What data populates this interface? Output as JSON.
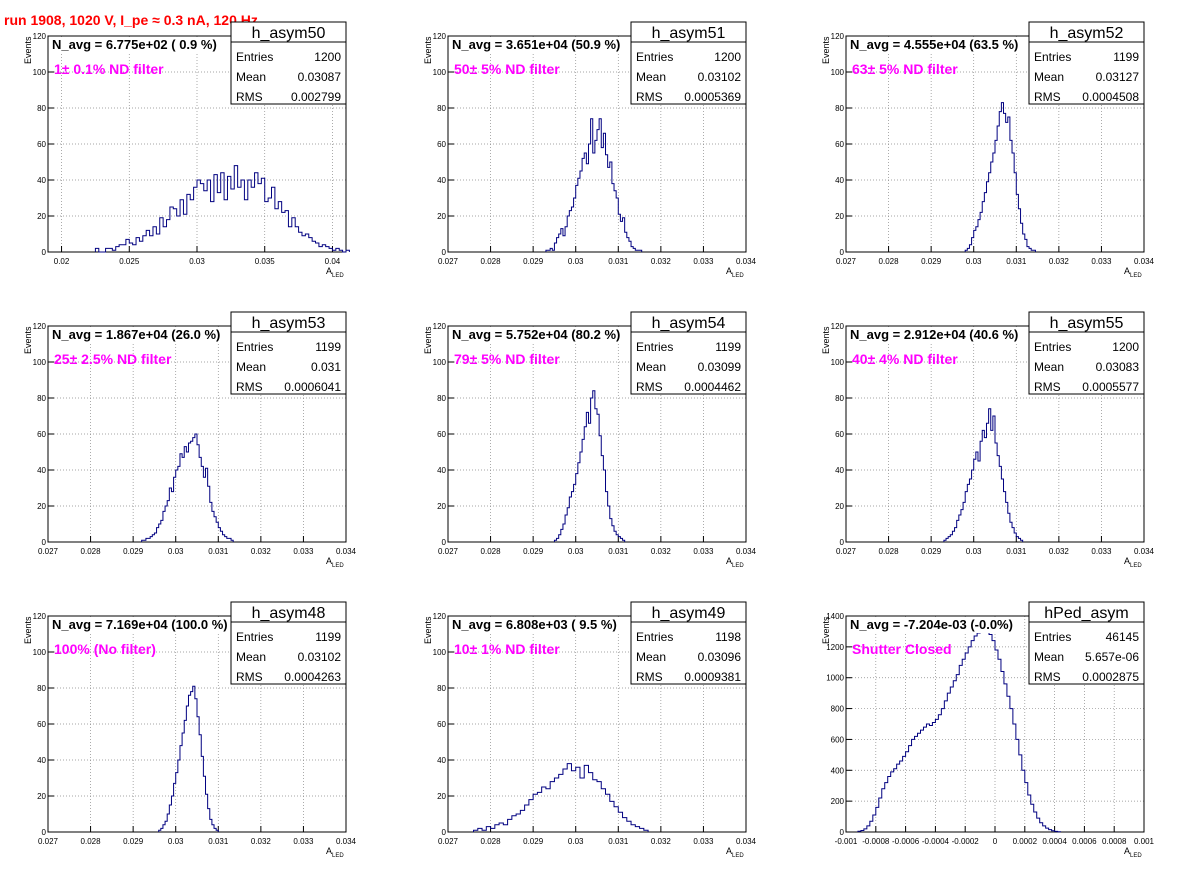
{
  "title": "run 1908,  1020 V, I_pe ≈ 0.3 nA, 120 Hz",
  "stats_labels": {
    "entries": "Entries",
    "mean": "Mean",
    "rms": "RMS"
  },
  "axis_labels": {
    "y": "Events",
    "x_main": "A",
    "x_sub": "LED"
  },
  "colors": {
    "line": "#000080",
    "annotation": "#ff00ff",
    "title": "#ff0000",
    "grid": "#888888"
  },
  "chart_data": [
    {
      "type": "histogram",
      "name": "h_asym50",
      "n_avg": "N_avg = 6.775e+02 ( 0.9 %)",
      "note": "1± 0.1% ND filter",
      "entries": "1200",
      "mean": "0.03087",
      "rms": "0.002799",
      "xlim": [
        0.019,
        0.041
      ],
      "ylim": [
        0,
        120
      ],
      "xticks": [
        "0.02",
        "0.025",
        "0.03",
        "0.035",
        "0.04"
      ],
      "yticks": [
        "0",
        "20",
        "40",
        "60",
        "80",
        "100",
        "120"
      ],
      "grid": true,
      "bins": {
        "x0": 0.0225,
        "width": 0.00025,
        "values": [
          2,
          0,
          0,
          2,
          2,
          1,
          3,
          4,
          4,
          7,
          5,
          4,
          8,
          6,
          9,
          12,
          9,
          14,
          10,
          19,
          14,
          18,
          25,
          24,
          20,
          29,
          21,
          32,
          29,
          36,
          40,
          38,
          34,
          40,
          28,
          43,
          33,
          44,
          29,
          42,
          35,
          48,
          36,
          40,
          29,
          40,
          36,
          44,
          38,
          41,
          28,
          30,
          36,
          24,
          28,
          22,
          23,
          14,
          19,
          14,
          11,
          9,
          10,
          8,
          6,
          5,
          3,
          4,
          3,
          2,
          1,
          2,
          1,
          0,
          1
        ]
      }
    },
    {
      "type": "histogram",
      "name": "h_asym51",
      "n_avg": "N_avg = 3.651e+04 (50.9 %)",
      "note": "50± 5% ND filter",
      "entries": "1200",
      "mean": "0.03102",
      "rms": "0.0005369",
      "xlim": [
        0.027,
        0.034
      ],
      "ylim": [
        0,
        120
      ],
      "xticks": [
        "0.027",
        "0.028",
        "0.029",
        "0.03",
        "0.031",
        "0.032",
        "0.033",
        "0.034"
      ],
      "yticks": [
        "0",
        "20",
        "40",
        "60",
        "80",
        "100",
        "120"
      ],
      "grid": true,
      "bins": {
        "x0": 0.0293,
        "width": 5e-05,
        "values": [
          1,
          1,
          2,
          1,
          5,
          8,
          10,
          13,
          9,
          14,
          20,
          23,
          25,
          30,
          37,
          41,
          45,
          52,
          55,
          49,
          60,
          74,
          55,
          62,
          68,
          74,
          58,
          66,
          54,
          47,
          50,
          38,
          34,
          30,
          21,
          17,
          19,
          11,
          8,
          6,
          3,
          2,
          1,
          1,
          1
        ]
      }
    },
    {
      "type": "histogram",
      "name": "h_asym52",
      "n_avg": "N_avg = 4.555e+04 (63.5 %)",
      "note": "63± 5% ND filter",
      "entries": "1199",
      "mean": "0.03127",
      "rms": "0.0004508",
      "xlim": [
        0.027,
        0.034
      ],
      "ylim": [
        0,
        120
      ],
      "xticks": [
        "0.027",
        "0.028",
        "0.029",
        "0.03",
        "0.031",
        "0.032",
        "0.033",
        "0.034"
      ],
      "yticks": [
        "0",
        "20",
        "40",
        "60",
        "80",
        "100",
        "120"
      ],
      "grid": true,
      "bins": {
        "x0": 0.0298,
        "width": 5e-05,
        "values": [
          1,
          2,
          4,
          8,
          12,
          14,
          18,
          22,
          28,
          33,
          39,
          44,
          50,
          55,
          62,
          70,
          78,
          83,
          77,
          72,
          75,
          62,
          55,
          44,
          32,
          24,
          16,
          10,
          7,
          3,
          2,
          1,
          1
        ]
      }
    },
    {
      "type": "histogram",
      "name": "h_asym53",
      "n_avg": "N_avg = 1.867e+04 (26.0 %)",
      "note": "25± 2.5% ND filter",
      "entries": "1199",
      "mean": "0.031",
      "rms": "0.0006041",
      "xlim": [
        0.027,
        0.034
      ],
      "ylim": [
        0,
        120
      ],
      "xticks": [
        "0.027",
        "0.028",
        "0.029",
        "0.03",
        "0.031",
        "0.032",
        "0.033",
        "0.034"
      ],
      "yticks": [
        "0",
        "20",
        "40",
        "60",
        "80",
        "100",
        "120"
      ],
      "grid": true,
      "bins": {
        "x0": 0.0292,
        "width": 5e-05,
        "values": [
          1,
          1,
          2,
          2,
          3,
          4,
          5,
          8,
          10,
          12,
          17,
          20,
          23,
          30,
          28,
          36,
          40,
          42,
          49,
          47,
          53,
          50,
          55,
          56,
          58,
          60,
          54,
          47,
          42,
          36,
          41,
          31,
          22,
          17,
          14,
          11,
          8,
          6,
          4,
          3,
          2,
          2,
          1
        ]
      }
    },
    {
      "type": "histogram",
      "name": "h_asym54",
      "n_avg": "N_avg = 5.752e+04 (80.2 %)",
      "note": "79± 5% ND filter",
      "entries": "1199",
      "mean": "0.03099",
      "rms": "0.0004462",
      "xlim": [
        0.027,
        0.034
      ],
      "ylim": [
        0,
        120
      ],
      "xticks": [
        "0.027",
        "0.028",
        "0.029",
        "0.03",
        "0.031",
        "0.032",
        "0.033",
        "0.034"
      ],
      "yticks": [
        "0",
        "20",
        "40",
        "60",
        "80",
        "100",
        "120"
      ],
      "grid": true,
      "bins": {
        "x0": 0.0295,
        "width": 5e-05,
        "values": [
          1,
          2,
          4,
          7,
          10,
          15,
          19,
          25,
          28,
          32,
          38,
          44,
          50,
          57,
          64,
          72,
          66,
          80,
          84,
          74,
          71,
          59,
          48,
          40,
          28,
          20,
          13,
          9,
          6,
          4,
          3,
          2,
          1
        ]
      }
    },
    {
      "type": "histogram",
      "name": "h_asym55",
      "n_avg": "N_avg = 2.912e+04 (40.6 %)",
      "note": "40± 4% ND filter",
      "entries": "1200",
      "mean": "0.03083",
      "rms": "0.0005577",
      "xlim": [
        0.027,
        0.034
      ],
      "ylim": [
        0,
        120
      ],
      "xticks": [
        "0.027",
        "0.028",
        "0.029",
        "0.03",
        "0.031",
        "0.032",
        "0.033",
        "0.034"
      ],
      "yticks": [
        "0",
        "20",
        "40",
        "60",
        "80",
        "100",
        "120"
      ],
      "grid": true,
      "bins": {
        "x0": 0.0293,
        "width": 5e-05,
        "values": [
          1,
          2,
          3,
          4,
          6,
          8,
          12,
          15,
          18,
          22,
          28,
          32,
          35,
          40,
          46,
          50,
          45,
          56,
          62,
          58,
          66,
          74,
          62,
          70,
          55,
          48,
          42,
          35,
          28,
          22,
          16,
          11,
          8,
          5,
          3,
          2,
          1
        ]
      }
    },
    {
      "type": "histogram",
      "name": "h_asym48",
      "n_avg": "N_avg = 7.169e+04 (100.0 %)",
      "note": "100% (No filter)",
      "entries": "1199",
      "mean": "0.03102",
      "rms": "0.0004263",
      "xlim": [
        0.027,
        0.034
      ],
      "ylim": [
        0,
        120
      ],
      "xticks": [
        "0.027",
        "0.028",
        "0.029",
        "0.03",
        "0.031",
        "0.032",
        "0.033",
        "0.034"
      ],
      "yticks": [
        "0",
        "20",
        "40",
        "60",
        "80",
        "100",
        "120"
      ],
      "grid": true,
      "bins": {
        "x0": 0.0296,
        "width": 5e-05,
        "values": [
          1,
          2,
          4,
          6,
          10,
          15,
          20,
          27,
          33,
          40,
          48,
          55,
          62,
          70,
          76,
          78,
          81,
          74,
          64,
          54,
          42,
          31,
          21,
          13,
          7,
          4,
          2,
          1
        ]
      }
    },
    {
      "type": "histogram",
      "name": "h_asym49",
      "n_avg": "N_avg = 6.808e+03 ( 9.5 %)",
      "note": "10± 1% ND filter",
      "entries": "1198",
      "mean": "0.03096",
      "rms": "0.0009381",
      "xlim": [
        0.027,
        0.034
      ],
      "ylim": [
        0,
        120
      ],
      "xticks": [
        "0.027",
        "0.028",
        "0.029",
        "0.03",
        "0.031",
        "0.032",
        "0.033",
        "0.034"
      ],
      "yticks": [
        "0",
        "20",
        "40",
        "60",
        "80",
        "100",
        "120"
      ],
      "grid": true,
      "bins": {
        "x0": 0.0276,
        "width": 0.0001,
        "values": [
          1,
          2,
          1,
          3,
          2,
          4,
          5,
          4,
          7,
          9,
          10,
          12,
          15,
          18,
          21,
          22,
          25,
          24,
          28,
          30,
          32,
          35,
          38,
          34,
          36,
          30,
          37,
          33,
          29,
          28,
          24,
          21,
          17,
          14,
          11,
          8,
          6,
          4,
          3,
          2,
          1
        ]
      }
    },
    {
      "type": "histogram",
      "name": "hPed_asym",
      "n_avg": "N_avg = -7.204e-03 (-0.0%)",
      "note": "Shutter Closed",
      "entries": "46145",
      "mean": "5.657e-06",
      "rms": "0.0002875",
      "xlim": [
        -0.001,
        0.001
      ],
      "ylim": [
        0,
        1400
      ],
      "xticks": [
        "-0.001",
        "-0.0008",
        "-0.0006",
        "-0.0004",
        "-0.0002",
        "0",
        "0.0002",
        "0.0004",
        "0.0006",
        "0.0008",
        "0.001"
      ],
      "yticks": [
        "0",
        "200",
        "400",
        "600",
        "800",
        "1000",
        "1200",
        "1400"
      ],
      "grid": true,
      "bins": {
        "x0": -0.00092,
        "width": 2e-05,
        "values": [
          5,
          10,
          20,
          40,
          70,
          110,
          160,
          220,
          280,
          320,
          360,
          390,
          410,
          440,
          460,
          490,
          520,
          560,
          600,
          620,
          640,
          660,
          680,
          700,
          690,
          710,
          730,
          760,
          800,
          850,
          900,
          940,
          980,
          1020,
          1080,
          1120,
          1160,
          1200,
          1240,
          1270,
          1290,
          1310,
          1300,
          1320,
          1280,
          1240,
          1180,
          1120,
          1040,
          960,
          880,
          800,
          700,
          600,
          500,
          400,
          320,
          240,
          180,
          130,
          90,
          60,
          40,
          25,
          15,
          8,
          4,
          2
        ]
      }
    }
  ]
}
